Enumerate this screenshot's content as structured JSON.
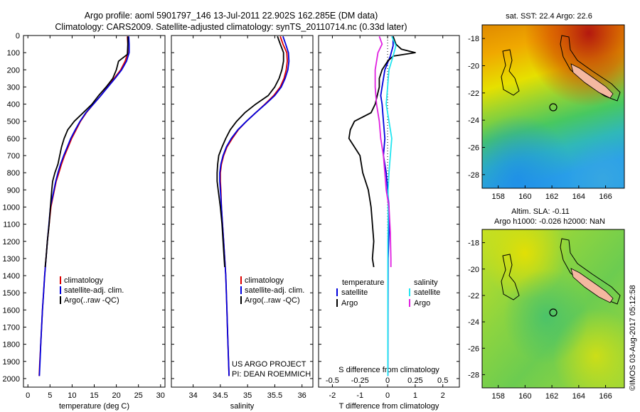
{
  "header": {
    "line1": "Argo profile: aoml 5901797_146 13-Jul-2011 22.902S 162.285E (DM data)",
    "line2": "Climatology: CARS2009. Satellite-adjusted climatology: synTS_20110714.nc (0.33d later)"
  },
  "colors": {
    "climatology": "#dd0000",
    "satellite": "#0000dd",
    "argo": "#000000",
    "sat_salinity": "#22e5f0",
    "argo_salinity": "#e020e0",
    "land": "#f4b8a0"
  },
  "depth_axis": {
    "ylim": [
      0,
      2050
    ],
    "ticks": [
      "0",
      "100",
      "200",
      "300",
      "400",
      "500",
      "600",
      "700",
      "800",
      "900",
      "1000",
      "1100",
      "1200",
      "1300",
      "1400",
      "1500",
      "1600",
      "1700",
      "1800",
      "1900",
      "2000"
    ]
  },
  "chart_data": [
    {
      "type": "line",
      "xlabel": "temperature (deg C)",
      "xlim": [
        -1,
        31
      ],
      "xticks": [
        "0",
        "5",
        "10",
        "15",
        "20",
        "25",
        "30"
      ],
      "legend": [
        "climatology",
        "satellite-adj. clim.",
        "Argo(..raw -QC)"
      ],
      "series": [
        {
          "name": "climatology",
          "points": [
            [
              22.5,
              5
            ],
            [
              22.6,
              50
            ],
            [
              22.6,
              100
            ],
            [
              22,
              150
            ],
            [
              21,
              200
            ],
            [
              19.5,
              250
            ],
            [
              18,
              300
            ],
            [
              16.5,
              350
            ],
            [
              14.8,
              400
            ],
            [
              13.2,
              450
            ],
            [
              11.9,
              500
            ],
            [
              10.9,
              550
            ],
            [
              9.9,
              600
            ],
            [
              9.1,
              650
            ],
            [
              8.3,
              700
            ],
            [
              7.6,
              750
            ],
            [
              7,
              800
            ],
            [
              6.4,
              850
            ],
            [
              6,
              900
            ],
            [
              5.6,
              950
            ],
            [
              5.2,
              1000
            ],
            [
              4.8,
              1100
            ],
            [
              4.4,
              1200
            ],
            [
              4.1,
              1300
            ],
            [
              3.8,
              1400
            ],
            [
              3.55,
              1500
            ],
            [
              3.3,
              1600
            ],
            [
              3.1,
              1700
            ],
            [
              2.9,
              1800
            ],
            [
              2.7,
              1900
            ],
            [
              2.55,
              1985
            ]
          ]
        },
        {
          "name": "satellite-adj. clim.",
          "points": [
            [
              22.8,
              5
            ],
            [
              22.9,
              50
            ],
            [
              22.9,
              100
            ],
            [
              22.3,
              150
            ],
            [
              21.2,
              200
            ],
            [
              19.7,
              250
            ],
            [
              18.1,
              300
            ],
            [
              16.5,
              350
            ],
            [
              14.8,
              400
            ],
            [
              13.1,
              450
            ],
            [
              11.8,
              500
            ],
            [
              10.7,
              550
            ],
            [
              9.7,
              600
            ],
            [
              8.9,
              650
            ],
            [
              8.1,
              700
            ],
            [
              7.4,
              750
            ],
            [
              6.8,
              800
            ],
            [
              6.3,
              850
            ],
            [
              5.9,
              900
            ],
            [
              5.5,
              950
            ],
            [
              5.1,
              1000
            ],
            [
              4.75,
              1100
            ],
            [
              4.4,
              1200
            ],
            [
              4.1,
              1300
            ],
            [
              3.8,
              1400
            ],
            [
              3.55,
              1500
            ],
            [
              3.3,
              1600
            ],
            [
              3.1,
              1700
            ],
            [
              2.9,
              1800
            ],
            [
              2.75,
              1900
            ],
            [
              2.6,
              1985
            ]
          ]
        },
        {
          "name": "Argo(..raw -QC)",
          "points": [
            [
              22.6,
              5
            ],
            [
              22.6,
              50
            ],
            [
              22.5,
              110
            ],
            [
              20.5,
              150
            ],
            [
              20,
              200
            ],
            [
              19.2,
              250
            ],
            [
              17.7,
              300
            ],
            [
              16,
              350
            ],
            [
              14.5,
              400
            ],
            [
              12.5,
              450
            ],
            [
              10.5,
              500
            ],
            [
              9,
              550
            ],
            [
              8.2,
              600
            ],
            [
              7.6,
              650
            ],
            [
              7.2,
              700
            ],
            [
              6.8,
              750
            ],
            [
              6.1,
              800
            ],
            [
              5.6,
              850
            ],
            [
              5.4,
              900
            ],
            [
              5.1,
              1000
            ],
            [
              4.8,
              1100
            ],
            [
              4.4,
              1200
            ],
            [
              4.1,
              1300
            ],
            [
              3.9,
              1350
            ]
          ]
        }
      ]
    },
    {
      "type": "line",
      "xlabel": "salinity",
      "xlim": [
        33.6,
        36.2
      ],
      "xticks": [
        "34",
        "34.5",
        "35",
        "35.5",
        "36"
      ],
      "legend": [
        "climatology",
        "satellite-adj. clim.",
        "Argo(..raw -QC)"
      ],
      "series": [
        {
          "name": "climatology",
          "points": [
            [
              35.6,
              5
            ],
            [
              35.65,
              50
            ],
            [
              35.72,
              100
            ],
            [
              35.73,
              150
            ],
            [
              35.71,
              200
            ],
            [
              35.67,
              250
            ],
            [
              35.6,
              300
            ],
            [
              35.48,
              350
            ],
            [
              35.32,
              400
            ],
            [
              35.15,
              450
            ],
            [
              34.98,
              500
            ],
            [
              34.83,
              550
            ],
            [
              34.72,
              600
            ],
            [
              34.62,
              650
            ],
            [
              34.56,
              700
            ],
            [
              34.52,
              750
            ],
            [
              34.5,
              800
            ],
            [
              34.5,
              850
            ],
            [
              34.51,
              900
            ],
            [
              34.52,
              1000
            ],
            [
              34.54,
              1100
            ],
            [
              34.56,
              1200
            ],
            [
              34.58,
              1300
            ],
            [
              34.6,
              1400
            ],
            [
              34.61,
              1500
            ],
            [
              34.62,
              1600
            ],
            [
              34.63,
              1700
            ],
            [
              34.64,
              1800
            ],
            [
              34.65,
              1900
            ],
            [
              34.66,
              1985
            ]
          ]
        },
        {
          "name": "satellite-adj. clim.",
          "points": [
            [
              35.65,
              5
            ],
            [
              35.7,
              50
            ],
            [
              35.75,
              100
            ],
            [
              35.76,
              150
            ],
            [
              35.74,
              200
            ],
            [
              35.69,
              250
            ],
            [
              35.62,
              300
            ],
            [
              35.5,
              350
            ],
            [
              35.33,
              400
            ],
            [
              35.15,
              450
            ],
            [
              34.98,
              500
            ],
            [
              34.82,
              550
            ],
            [
              34.7,
              600
            ],
            [
              34.61,
              650
            ],
            [
              34.55,
              700
            ],
            [
              34.51,
              750
            ],
            [
              34.49,
              800
            ],
            [
              34.49,
              850
            ],
            [
              34.5,
              900
            ],
            [
              34.52,
              1000
            ],
            [
              34.54,
              1100
            ],
            [
              34.56,
              1200
            ],
            [
              34.58,
              1300
            ],
            [
              34.6,
              1400
            ],
            [
              34.61,
              1500
            ],
            [
              34.62,
              1600
            ],
            [
              34.63,
              1700
            ],
            [
              34.64,
              1800
            ],
            [
              34.65,
              1900
            ],
            [
              34.66,
              1985
            ]
          ]
        },
        {
          "name": "Argo(..raw -QC)",
          "points": [
            [
              35.55,
              5
            ],
            [
              35.6,
              50
            ],
            [
              35.66,
              100
            ],
            [
              35.66,
              150
            ],
            [
              35.63,
              200
            ],
            [
              35.58,
              250
            ],
            [
              35.5,
              300
            ],
            [
              35.38,
              350
            ],
            [
              35.15,
              400
            ],
            [
              34.95,
              450
            ],
            [
              34.8,
              500
            ],
            [
              34.68,
              550
            ],
            [
              34.6,
              600
            ],
            [
              34.53,
              650
            ],
            [
              34.47,
              700
            ],
            [
              34.45,
              750
            ],
            [
              34.44,
              800
            ],
            [
              34.44,
              850
            ],
            [
              34.46,
              900
            ],
            [
              34.5,
              1000
            ],
            [
              34.53,
              1100
            ],
            [
              34.55,
              1200
            ],
            [
              34.57,
              1300
            ],
            [
              34.58,
              1350
            ]
          ]
        }
      ]
    },
    {
      "type": "line",
      "xlabel": "T difference from climatology",
      "xlabel_top": "S difference from climatology",
      "xlim": [
        -2.5,
        2.6
      ],
      "xticks": [
        "-2",
        "-1",
        "0",
        "1",
        "2"
      ],
      "s_xticks": [
        {
          "label": "-0.5",
          "t": -2
        },
        {
          "label": "-0.25",
          "t": -1
        },
        {
          "label": "0",
          "t": 0
        },
        {
          "label": "0.25",
          "t": 1
        },
        {
          "label": "0.5",
          "t": 2
        }
      ],
      "legend_heads": [
        "temperature",
        "salinity"
      ],
      "legend": [
        "satellite",
        "Argo",
        "satellite",
        "Argo"
      ],
      "series": [
        {
          "name": "satellite",
          "points": [
            [
              0.2,
              5
            ],
            [
              0.2,
              60
            ],
            [
              0.1,
              120
            ],
            [
              -0.1,
              200
            ],
            [
              -0.2,
              300
            ],
            [
              -0.25,
              350
            ],
            [
              -0.2,
              400
            ],
            [
              -0.15,
              500
            ],
            [
              -0.1,
              600
            ],
            [
              -0.15,
              700
            ],
            [
              -0.05,
              800
            ],
            [
              0,
              900
            ],
            [
              0.05,
              1000
            ],
            [
              0.05,
              1150
            ],
            [
              0.02,
              1300
            ],
            [
              0.01,
              1985
            ]
          ]
        },
        {
          "name": "Argo",
          "points": [
            [
              0.2,
              5
            ],
            [
              0.3,
              50
            ],
            [
              0.5,
              80
            ],
            [
              1.0,
              100
            ],
            [
              0.2,
              120
            ],
            [
              0,
              150
            ],
            [
              -0.2,
              200
            ],
            [
              -0.3,
              250
            ],
            [
              -0.3,
              300
            ],
            [
              -0.45,
              400
            ],
            [
              -0.6,
              450
            ],
            [
              -1.2,
              500
            ],
            [
              -1.35,
              550
            ],
            [
              -1.4,
              600
            ],
            [
              -1.2,
              650
            ],
            [
              -1.0,
              700
            ],
            [
              -0.9,
              800
            ],
            [
              -0.7,
              900
            ],
            [
              -0.6,
              1000
            ],
            [
              -0.55,
              1100
            ],
            [
              -0.5,
              1200
            ],
            [
              -0.55,
              1300
            ],
            [
              -0.5,
              1350
            ]
          ]
        },
        {
          "name": "sat-salinity",
          "points": [
            [
              0.15,
              5
            ],
            [
              0.3,
              60
            ],
            [
              0.2,
              120
            ],
            [
              0.05,
              200
            ],
            [
              0,
              300
            ],
            [
              -0.05,
              400
            ],
            [
              0.05,
              500
            ],
            [
              0.15,
              600
            ],
            [
              0.1,
              700
            ],
            [
              0.05,
              800
            ],
            [
              0.02,
              900
            ],
            [
              0.02,
              1000
            ],
            [
              0.02,
              1100
            ],
            [
              0.01,
              1200
            ],
            [
              0.01,
              1985
            ]
          ]
        },
        {
          "name": "argo-salinity",
          "points": [
            [
              -0.3,
              5
            ],
            [
              -0.2,
              50
            ],
            [
              -0.35,
              100
            ],
            [
              -0.45,
              200
            ],
            [
              -0.45,
              300
            ],
            [
              -0.4,
              400
            ],
            [
              -0.3,
              500
            ],
            [
              -0.25,
              600
            ],
            [
              -0.15,
              700
            ],
            [
              -0.1,
              800
            ],
            [
              -0.05,
              900
            ],
            [
              0.05,
              1000
            ],
            [
              0.1,
              1150
            ],
            [
              0.12,
              1300
            ],
            [
              0.12,
              1350
            ]
          ]
        }
      ]
    }
  ],
  "map_top": {
    "title": "sat. SST: 22.4  Argo: 22.6",
    "lat_ticks": [
      "-18",
      "-20",
      "-22",
      "-24",
      "-26",
      "-28"
    ],
    "lon_ticks": [
      "158",
      "160",
      "162",
      "164",
      "166"
    ]
  },
  "map_bottom": {
    "title1": "Altim. SLA: -0.11",
    "title2": "Argo h1000: -0.026 h2000: NaN",
    "lat_ticks": [
      "-18",
      "-20",
      "-22",
      "-24",
      "-26",
      "-28"
    ],
    "lon_ticks": [
      "158",
      "160",
      "162",
      "164",
      "166"
    ]
  },
  "credit": {
    "project": "US ARGO PROJECT",
    "pi": "PI: DEAN ROEMMICH",
    "imos": "©IMOS 03-Aug-2017 05:12:58"
  }
}
